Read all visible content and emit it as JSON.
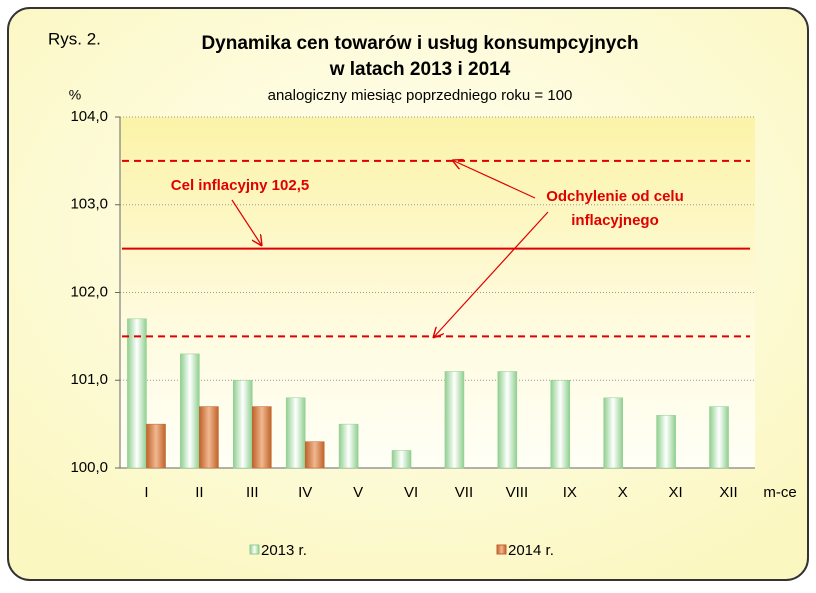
{
  "chart_data": {
    "type": "bar",
    "figure_label": "Rys. 2.",
    "title": [
      "Dynamika cen towarów i usług konsumpcyjnych",
      "w latach 2013 i 2014"
    ],
    "subtitle": "analogiczny miesiąc poprzedniego roku = 100",
    "y_label": "%",
    "x_label": "m-ce",
    "categories": [
      "I",
      "II",
      "III",
      "IV",
      "V",
      "VI",
      "VII",
      "VIII",
      "IX",
      "X",
      "XI",
      "XII"
    ],
    "series": [
      {
        "name": "2013 r.",
        "color": "#8fcf8f",
        "values": [
          101.7,
          101.3,
          101.0,
          100.8,
          100.5,
          100.2,
          101.1,
          101.1,
          101.0,
          100.8,
          100.6,
          100.7
        ]
      },
      {
        "name": "2014 r.",
        "color": "#c0622a",
        "values": [
          100.5,
          100.7,
          100.7,
          100.3,
          null,
          null,
          null,
          null,
          null,
          null,
          null,
          null
        ]
      }
    ],
    "ylim": [
      100,
      104
    ],
    "yticks": [
      {
        "value": 100,
        "label": "100,0"
      },
      {
        "value": 101,
        "label": "101,0"
      },
      {
        "value": 102,
        "label": "102,0"
      },
      {
        "value": 103,
        "label": "103,0"
      },
      {
        "value": 104,
        "label": "104,0"
      }
    ],
    "grid": true,
    "reference_lines": [
      {
        "value": 102.5,
        "style": "solid",
        "color": "#e00000"
      },
      {
        "value": 101.5,
        "style": "dashed",
        "color": "#e00000"
      },
      {
        "value": 103.5,
        "style": "dashed",
        "color": "#e00000"
      }
    ],
    "annotations": [
      {
        "text": [
          "Cel inflacyjny 102,5"
        ],
        "color": "#e00000"
      },
      {
        "text": [
          "Odchylenie od celu",
          "inflacyjnego"
        ],
        "color": "#e00000"
      }
    ],
    "legend": "bottom"
  }
}
